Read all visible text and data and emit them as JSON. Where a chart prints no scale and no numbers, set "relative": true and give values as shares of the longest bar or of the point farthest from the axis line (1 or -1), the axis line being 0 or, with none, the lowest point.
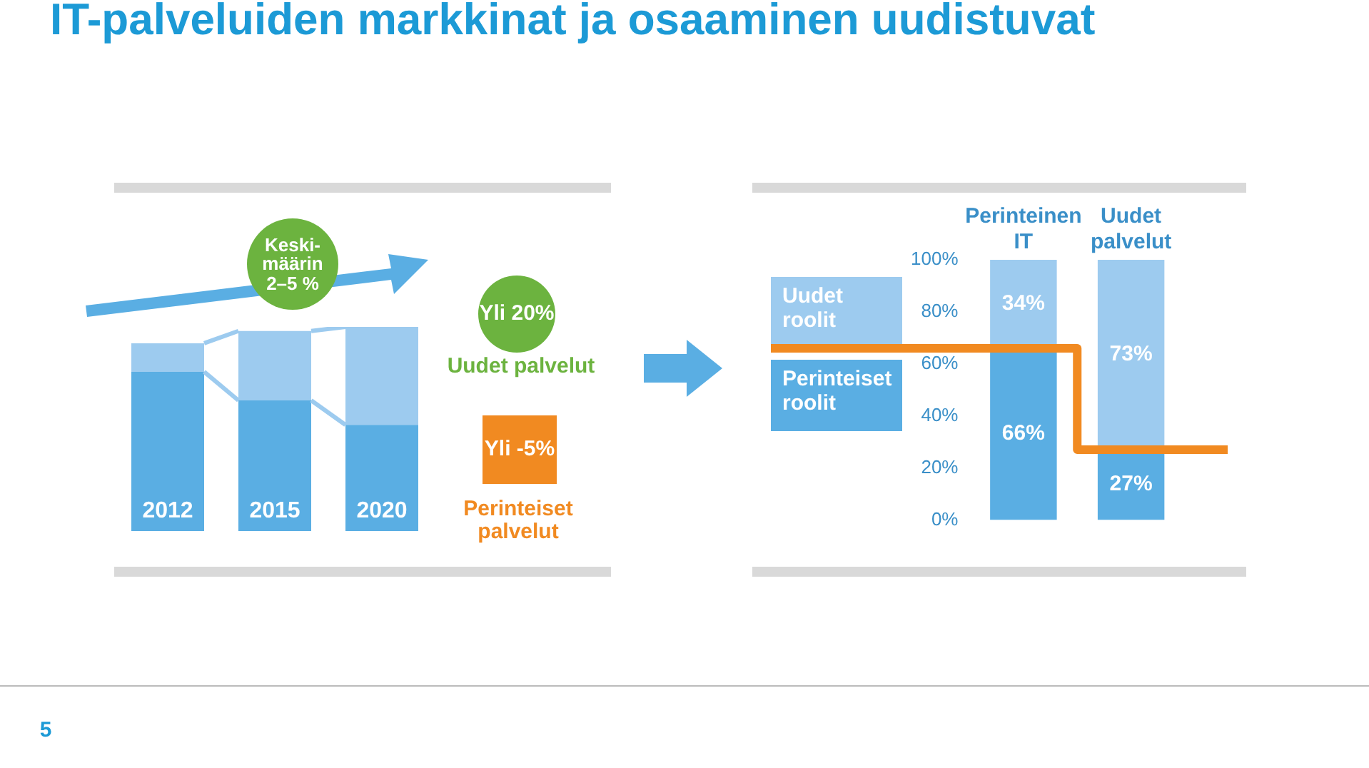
{
  "chart_data": [
    {
      "type": "bar",
      "title": "IT-palveluiden markkinat ja osaaminen uudistuvat",
      "relative": true,
      "stacked": true,
      "categories": [
        "2012",
        "2015",
        "2020"
      ],
      "series": [
        {
          "color": "#5aaee3",
          "values": [
            0.78,
            0.64,
            0.52
          ]
        },
        {
          "color": "#9dcbef",
          "values": [
            0.14,
            0.34,
            0.48
          ]
        }
      ],
      "annotations": [
        "Keski-määrin 2–5 %",
        "Yli 20%",
        "Uudet palvelut",
        "Yli -5%",
        "Perinteiset palvelut",
        "5"
      ]
    },
    {
      "type": "bar",
      "stacked": true,
      "categories": [
        "Perinteinen IT",
        "Uudet palvelut"
      ],
      "ylim": [
        0,
        100
      ],
      "yticks": [
        {
          "value": 0,
          "label": "0%"
        },
        {
          "value": 20,
          "label": "20%"
        },
        {
          "value": 40,
          "label": "40%"
        },
        {
          "value": 60,
          "label": "60%"
        },
        {
          "value": 80,
          "label": "80%"
        },
        {
          "value": 100,
          "label": "100%"
        }
      ],
      "series": [
        {
          "name": "Perinteiset roolit",
          "color": "#5aaee3",
          "values": [
            66,
            27
          ],
          "value_labels": [
            "66%",
            "27%"
          ]
        },
        {
          "name": "Uudet roolit",
          "color": "#9dcbef",
          "values": [
            34,
            73
          ],
          "value_labels": [
            "34%",
            "73%"
          ]
        }
      ],
      "legend": "left",
      "grid": false
    }
  ]
}
